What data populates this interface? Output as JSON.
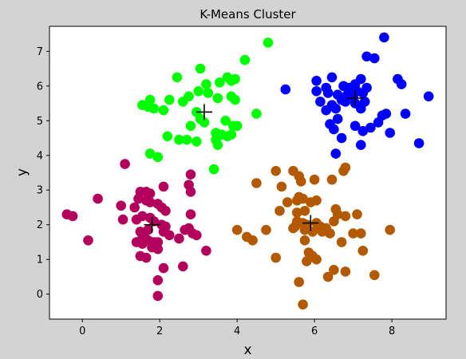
{
  "chart_data": {
    "type": "scatter",
    "title": "K-Means Cluster",
    "xlabel": "x",
    "ylabel": "y",
    "xlim": [
      -0.85,
      9.4
    ],
    "ylim": [
      -0.72,
      7.72
    ],
    "xticks": [
      0,
      2,
      4,
      6,
      8
    ],
    "yticks": [
      0,
      1,
      2,
      3,
      4,
      5,
      6,
      7
    ],
    "grid": false,
    "legend": "none",
    "series": [
      {
        "color": "#00ff00",
        "points": [
          [
            4.8,
            7.25
          ],
          [
            4.2,
            6.75
          ],
          [
            3.05,
            6.5
          ],
          [
            2.45,
            6.25
          ],
          [
            3.55,
            6.1
          ],
          [
            3.75,
            6.25
          ],
          [
            3.95,
            6.2
          ],
          [
            3.85,
            6.15
          ],
          [
            3.2,
            6.05
          ],
          [
            3.0,
            5.85
          ],
          [
            3.25,
            5.8
          ],
          [
            3.5,
            5.65
          ],
          [
            2.6,
            5.55
          ],
          [
            2.75,
            5.7
          ],
          [
            2.25,
            5.6
          ],
          [
            1.75,
            5.6
          ],
          [
            1.55,
            5.45
          ],
          [
            1.7,
            5.4
          ],
          [
            1.85,
            5.35
          ],
          [
            2.1,
            5.3
          ],
          [
            3.85,
            5.7
          ],
          [
            3.95,
            5.6
          ],
          [
            2.95,
            5.25
          ],
          [
            3.05,
            5.05
          ],
          [
            3.15,
            4.95
          ],
          [
            4.5,
            5.2
          ],
          [
            2.8,
            4.85
          ],
          [
            3.7,
            5.0
          ],
          [
            3.9,
            4.85
          ],
          [
            4.0,
            4.85
          ],
          [
            3.45,
            4.65
          ],
          [
            3.6,
            4.6
          ],
          [
            3.75,
            4.55
          ],
          [
            3.85,
            4.6
          ],
          [
            2.2,
            4.55
          ],
          [
            2.5,
            4.45
          ],
          [
            2.7,
            4.45
          ],
          [
            2.95,
            4.4
          ],
          [
            3.45,
            4.45
          ],
          [
            3.5,
            4.3
          ],
          [
            1.75,
            4.05
          ],
          [
            1.95,
            3.95
          ],
          [
            3.4,
            3.6
          ]
        ]
      },
      {
        "color": "#0000ff",
        "points": [
          [
            7.8,
            7.4
          ],
          [
            7.35,
            6.85
          ],
          [
            7.55,
            6.8
          ],
          [
            8.15,
            6.2
          ],
          [
            8.25,
            6.05
          ],
          [
            6.05,
            6.15
          ],
          [
            6.45,
            6.25
          ],
          [
            6.3,
            5.95
          ],
          [
            6.75,
            6.0
          ],
          [
            6.9,
            5.95
          ],
          [
            7.05,
            6.05
          ],
          [
            7.2,
            6.2
          ],
          [
            7.35,
            5.95
          ],
          [
            6.05,
            5.85
          ],
          [
            6.35,
            5.8
          ],
          [
            6.6,
            5.75
          ],
          [
            6.85,
            5.75
          ],
          [
            7.0,
            5.7
          ],
          [
            7.1,
            5.85
          ],
          [
            7.25,
            5.8
          ],
          [
            5.25,
            5.9
          ],
          [
            6.15,
            5.55
          ],
          [
            6.45,
            5.45
          ],
          [
            6.7,
            5.6
          ],
          [
            6.8,
            5.55
          ],
          [
            7.05,
            5.5
          ],
          [
            7.3,
            5.55
          ],
          [
            6.3,
            5.3
          ],
          [
            6.55,
            5.35
          ],
          [
            7.2,
            5.35
          ],
          [
            7.85,
            5.2
          ],
          [
            7.75,
            5.15
          ],
          [
            8.35,
            5.2
          ],
          [
            8.95,
            5.7
          ],
          [
            6.4,
            4.9
          ],
          [
            6.6,
            5.05
          ],
          [
            6.5,
            4.75
          ],
          [
            7.05,
            4.85
          ],
          [
            7.25,
            4.7
          ],
          [
            7.45,
            4.8
          ],
          [
            7.65,
            4.95
          ],
          [
            7.95,
            4.65
          ],
          [
            6.7,
            4.5
          ],
          [
            7.2,
            4.3
          ],
          [
            6.55,
            4.05
          ],
          [
            8.7,
            4.35
          ]
        ]
      },
      {
        "color": "#b35900",
        "points": [
          [
            5.0,
            3.55
          ],
          [
            5.45,
            3.55
          ],
          [
            5.6,
            3.4
          ],
          [
            5.65,
            3.25
          ],
          [
            6.0,
            3.3
          ],
          [
            6.45,
            3.3
          ],
          [
            6.75,
            3.55
          ],
          [
            6.8,
            3.65
          ],
          [
            4.5,
            3.2
          ],
          [
            5.15,
            3.1
          ],
          [
            5.3,
            2.65
          ],
          [
            5.55,
            2.7
          ],
          [
            5.6,
            2.8
          ],
          [
            5.7,
            2.75
          ],
          [
            5.9,
            2.65
          ],
          [
            6.05,
            2.7
          ],
          [
            5.55,
            2.35
          ],
          [
            5.75,
            2.4
          ],
          [
            5.1,
            2.4
          ],
          [
            6.55,
            2.45
          ],
          [
            6.6,
            2.3
          ],
          [
            6.8,
            2.25
          ],
          [
            7.1,
            2.3
          ],
          [
            6.5,
            2.1
          ],
          [
            6.05,
            2.05
          ],
          [
            6.15,
            1.95
          ],
          [
            6.3,
            1.9
          ],
          [
            5.55,
            2.1
          ],
          [
            5.7,
            2.05
          ],
          [
            5.8,
            2.0
          ],
          [
            5.5,
            1.95
          ],
          [
            5.45,
            1.9
          ],
          [
            5.75,
            1.85
          ],
          [
            5.95,
            1.8
          ],
          [
            6.2,
            1.8
          ],
          [
            6.4,
            1.75
          ],
          [
            7.0,
            1.75
          ],
          [
            7.2,
            1.75
          ],
          [
            7.95,
            1.85
          ],
          [
            4.0,
            1.85
          ],
          [
            4.75,
            1.85
          ],
          [
            4.25,
            1.65
          ],
          [
            4.4,
            1.55
          ],
          [
            5.75,
            1.55
          ],
          [
            6.7,
            1.5
          ],
          [
            5.85,
            1.2
          ],
          [
            5.95,
            1.1
          ],
          [
            6.05,
            1.0
          ],
          [
            5.8,
            0.95
          ],
          [
            7.25,
            1.25
          ],
          [
            5.0,
            1.05
          ],
          [
            6.5,
            0.7
          ],
          [
            6.8,
            0.65
          ],
          [
            6.35,
            0.5
          ],
          [
            7.55,
            0.55
          ],
          [
            5.6,
            0.35
          ],
          [
            5.7,
            -0.3
          ]
        ]
      },
      {
        "color": "#b3005c",
        "points": [
          [
            1.1,
            3.75
          ],
          [
            2.8,
            3.45
          ],
          [
            2.1,
            3.1
          ],
          [
            2.75,
            3.15
          ],
          [
            1.5,
            2.95
          ],
          [
            1.65,
            2.95
          ],
          [
            1.75,
            2.9
          ],
          [
            2.8,
            2.95
          ],
          [
            1.45,
            2.75
          ],
          [
            1.65,
            2.7
          ],
          [
            1.75,
            2.65
          ],
          [
            0.4,
            2.75
          ],
          [
            1.0,
            2.55
          ],
          [
            1.35,
            2.5
          ],
          [
            1.95,
            2.6
          ],
          [
            2.05,
            2.5
          ],
          [
            2.15,
            2.4
          ],
          [
            1.55,
            2.25
          ],
          [
            1.75,
            2.2
          ],
          [
            1.85,
            2.1
          ],
          [
            2.8,
            2.3
          ],
          [
            1.05,
            2.15
          ],
          [
            1.4,
            2.15
          ],
          [
            2.05,
            2.0
          ],
          [
            2.15,
            1.95
          ],
          [
            1.7,
            1.85
          ],
          [
            2.1,
            1.8
          ],
          [
            1.5,
            1.8
          ],
          [
            1.55,
            1.7
          ],
          [
            1.6,
            1.65
          ],
          [
            2.65,
            1.85
          ],
          [
            2.75,
            1.9
          ],
          [
            2.85,
            1.75
          ],
          [
            2.95,
            1.7
          ],
          [
            2.25,
            1.7
          ],
          [
            1.7,
            1.55
          ],
          [
            1.85,
            1.5
          ],
          [
            1.95,
            1.5
          ],
          [
            1.4,
            1.5
          ],
          [
            1.55,
            1.45
          ],
          [
            2.5,
            1.6
          ],
          [
            1.8,
            1.35
          ],
          [
            1.95,
            1.3
          ],
          [
            1.5,
            1.1
          ],
          [
            1.65,
            1.05
          ],
          [
            2.1,
            0.75
          ],
          [
            2.6,
            0.8
          ],
          [
            3.2,
            1.25
          ],
          [
            1.95,
            0.4
          ],
          [
            1.95,
            -0.05
          ],
          [
            0.15,
            1.55
          ],
          [
            -0.4,
            2.3
          ],
          [
            -0.25,
            2.25
          ]
        ]
      }
    ],
    "centroids": [
      [
        3.15,
        5.25
      ],
      [
        7.05,
        5.65
      ],
      [
        5.9,
        2.05
      ],
      [
        1.8,
        2.0
      ]
    ]
  }
}
